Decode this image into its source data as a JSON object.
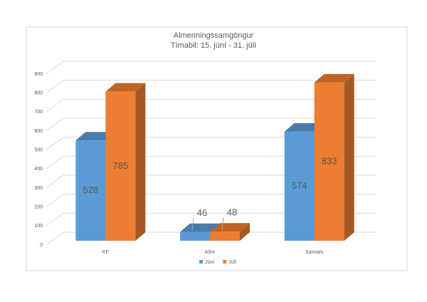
{
  "chart_data": {
    "type": "bar3d",
    "title": "Almenningssamgöngur",
    "subtitle": "Tímabil: 15. júní - 31. júlí",
    "categories": [
      "KF",
      "Aðrir",
      "Samtals"
    ],
    "series": [
      {
        "name": "Júní",
        "color": "#5b9bd5",
        "values": [
          528,
          46,
          574
        ]
      },
      {
        "name": "Júlí",
        "color": "#ed7d31",
        "values": [
          785,
          48,
          833
        ]
      }
    ],
    "ylim": [
      0,
      900
    ],
    "yticks": [
      0,
      100,
      200,
      300,
      400,
      500,
      600,
      700,
      800,
      900
    ],
    "grid": true,
    "legend": "bottom"
  }
}
